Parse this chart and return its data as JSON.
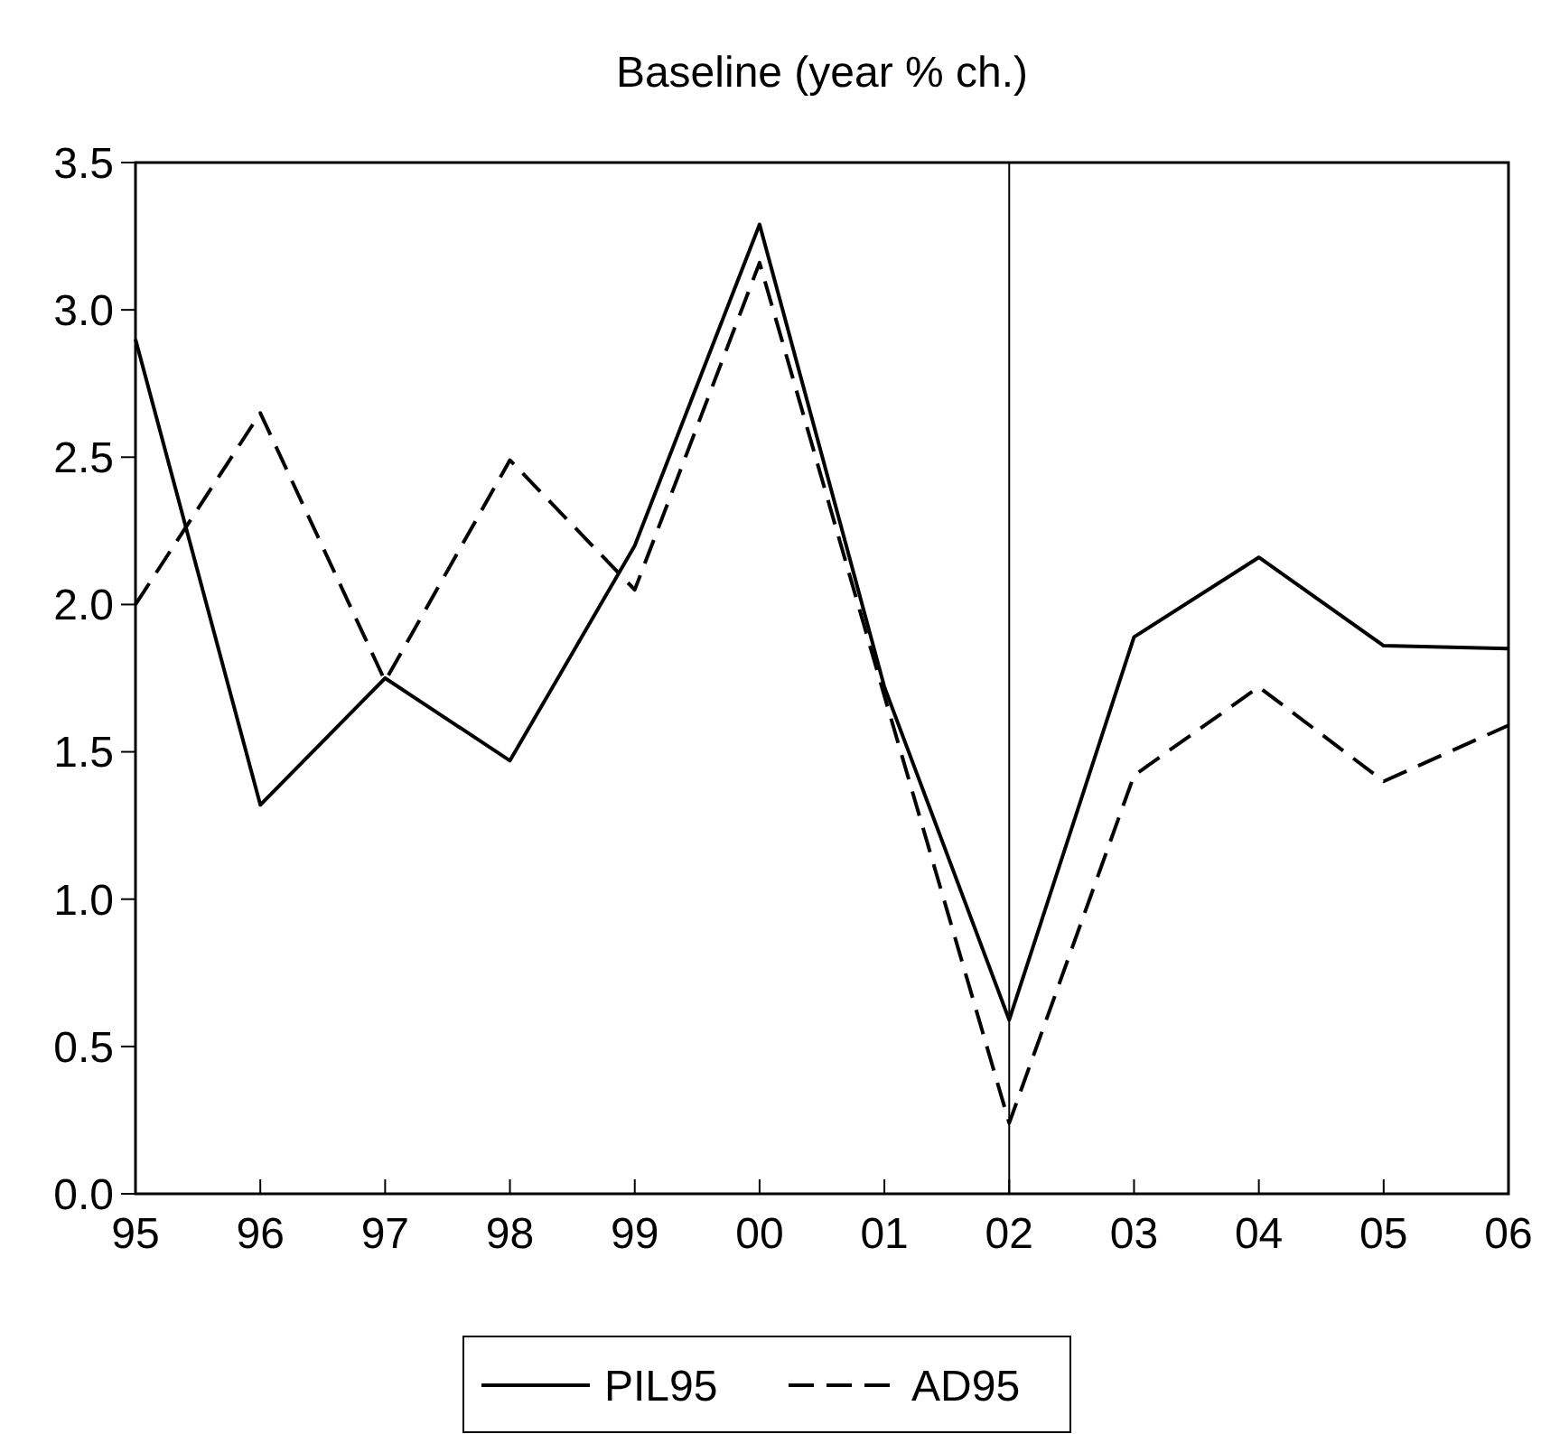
{
  "chart_data": {
    "type": "line",
    "title": "Baseline (year % ch.)",
    "categories": [
      "95",
      "96",
      "97",
      "98",
      "99",
      "00",
      "01",
      "02",
      "03",
      "04",
      "05",
      "06"
    ],
    "series": [
      {
        "name": "PIL95",
        "color": "#000000",
        "line_style": "solid",
        "values": [
          2.9,
          1.32,
          1.75,
          1.47,
          2.2,
          3.29,
          1.72,
          0.59,
          1.89,
          2.16,
          1.86,
          1.85
        ]
      },
      {
        "name": "AD95",
        "color": "#000000",
        "line_style": "dashed",
        "values": [
          2.0,
          2.65,
          1.74,
          2.49,
          2.05,
          3.16,
          1.69,
          0.24,
          1.42,
          1.72,
          1.4,
          1.59
        ]
      }
    ],
    "ylim": [
      0,
      3.5
    ],
    "yticks": [
      {
        "value": 0,
        "label": "0.0"
      },
      {
        "value": 0.5,
        "label": "0.5"
      },
      {
        "value": 1,
        "label": "1.0"
      },
      {
        "value": 1.5,
        "label": "1.5"
      },
      {
        "value": 2,
        "label": "2.0"
      },
      {
        "value": 2.5,
        "label": "2.5"
      },
      {
        "value": 3,
        "label": "3.0"
      },
      {
        "value": 3.5,
        "label": "3.5"
      }
    ],
    "ref_lines": [
      {
        "axis": "x",
        "value": "02",
        "color": "#000000"
      }
    ],
    "grid": false,
    "legend": "bottom",
    "marker": "none"
  }
}
